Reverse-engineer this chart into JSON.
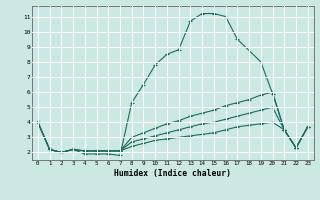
{
  "xlabel": "Humidex (Indice chaleur)",
  "bg_color": "#cce8e4",
  "grid_color": "#ffffff",
  "line_color": "#1a6b5e",
  "line1": [
    [
      0,
      4.0
    ],
    [
      1,
      2.2
    ],
    [
      2,
      2.0
    ],
    [
      3,
      2.2
    ],
    [
      4,
      1.9
    ],
    [
      5,
      1.9
    ],
    [
      6,
      1.9
    ],
    [
      7,
      1.8
    ],
    [
      8,
      5.3
    ],
    [
      9,
      6.5
    ],
    [
      10,
      7.8
    ],
    [
      11,
      8.5
    ],
    [
      12,
      8.8
    ],
    [
      13,
      10.7
    ],
    [
      14,
      11.2
    ],
    [
      15,
      11.2
    ],
    [
      16,
      11.0
    ],
    [
      17,
      9.5
    ],
    [
      19,
      8.0
    ],
    [
      20,
      5.9
    ],
    [
      21,
      3.5
    ],
    [
      22,
      2.3
    ],
    [
      23,
      3.7
    ]
  ],
  "line2": [
    [
      0,
      4.0
    ],
    [
      1,
      2.2
    ],
    [
      2,
      2.0
    ],
    [
      3,
      2.2
    ],
    [
      4,
      2.1
    ],
    [
      5,
      2.1
    ],
    [
      6,
      2.1
    ],
    [
      7,
      2.1
    ],
    [
      8,
      3.0
    ],
    [
      9,
      3.3
    ],
    [
      10,
      3.6
    ],
    [
      11,
      3.9
    ],
    [
      12,
      4.1
    ],
    [
      13,
      4.4
    ],
    [
      14,
      4.6
    ],
    [
      15,
      4.8
    ],
    [
      16,
      5.1
    ],
    [
      17,
      5.3
    ],
    [
      18,
      5.5
    ],
    [
      19,
      5.8
    ],
    [
      20,
      6.0
    ],
    [
      21,
      3.5
    ],
    [
      22,
      2.3
    ],
    [
      23,
      3.7
    ]
  ],
  "line3": [
    [
      0,
      4.0
    ],
    [
      1,
      2.2
    ],
    [
      2,
      2.0
    ],
    [
      3,
      2.2
    ],
    [
      4,
      2.1
    ],
    [
      5,
      2.1
    ],
    [
      6,
      2.1
    ],
    [
      7,
      2.1
    ],
    [
      8,
      2.7
    ],
    [
      9,
      2.9
    ],
    [
      10,
      3.1
    ],
    [
      11,
      3.3
    ],
    [
      12,
      3.5
    ],
    [
      13,
      3.7
    ],
    [
      14,
      3.9
    ],
    [
      15,
      4.0
    ],
    [
      16,
      4.2
    ],
    [
      17,
      4.4
    ],
    [
      18,
      4.6
    ],
    [
      19,
      4.8
    ],
    [
      20,
      5.0
    ],
    [
      21,
      3.5
    ],
    [
      22,
      2.3
    ],
    [
      23,
      3.7
    ]
  ],
  "line4": [
    [
      0,
      4.0
    ],
    [
      1,
      2.2
    ],
    [
      2,
      2.0
    ],
    [
      3,
      2.2
    ],
    [
      4,
      2.1
    ],
    [
      5,
      2.1
    ],
    [
      6,
      2.1
    ],
    [
      7,
      2.1
    ],
    [
      8,
      2.4
    ],
    [
      9,
      2.6
    ],
    [
      10,
      2.8
    ],
    [
      11,
      2.9
    ],
    [
      12,
      3.0
    ],
    [
      13,
      3.1
    ],
    [
      14,
      3.2
    ],
    [
      15,
      3.3
    ],
    [
      16,
      3.5
    ],
    [
      17,
      3.7
    ],
    [
      18,
      3.8
    ],
    [
      19,
      3.9
    ],
    [
      20,
      4.0
    ],
    [
      21,
      3.5
    ],
    [
      22,
      2.3
    ],
    [
      23,
      3.7
    ]
  ],
  "xlim": [
    -0.5,
    23.5
  ],
  "ylim": [
    1.5,
    11.7
  ],
  "yticks": [
    2,
    3,
    4,
    5,
    6,
    7,
    8,
    9,
    10,
    11
  ],
  "xticks": [
    0,
    1,
    2,
    3,
    4,
    5,
    6,
    7,
    8,
    9,
    10,
    11,
    12,
    13,
    14,
    15,
    16,
    17,
    18,
    19,
    20,
    21,
    22,
    23
  ]
}
